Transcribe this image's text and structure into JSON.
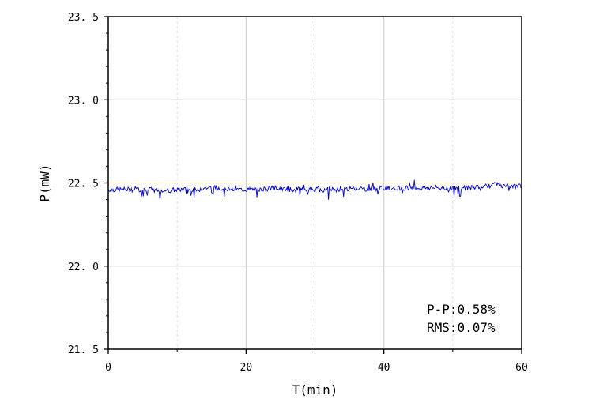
{
  "chart_data": {
    "type": "line",
    "xlabel": "T(min)",
    "ylabel": "P(mW)",
    "xlim": [
      0,
      60
    ],
    "ylim": [
      21.5,
      23.5
    ],
    "x_ticks": [
      "0",
      "20",
      "40",
      "60"
    ],
    "y_ticks": [
      "21.5",
      "22.0",
      "22.5",
      "23.0",
      "23.5"
    ],
    "grid": true,
    "reference_line": {
      "y": 22.5,
      "color": "#f0d9a0"
    },
    "series": [
      {
        "color": "#0000cc",
        "x": [
          0,
          2,
          4,
          6,
          8,
          10,
          12,
          14,
          16,
          18,
          20,
          22,
          24,
          26,
          28,
          30,
          32,
          34,
          36,
          38,
          40,
          42,
          44,
          46,
          48,
          50,
          52,
          54,
          56,
          58,
          60
        ],
        "y": [
          22.46,
          22.46,
          22.46,
          22.46,
          22.45,
          22.46,
          22.46,
          22.47,
          22.47,
          22.46,
          22.46,
          22.46,
          22.47,
          22.46,
          22.46,
          22.46,
          22.46,
          22.46,
          22.47,
          22.46,
          22.47,
          22.47,
          22.47,
          22.47,
          22.47,
          22.47,
          22.47,
          22.48,
          22.49,
          22.48,
          22.48
        ]
      }
    ],
    "annotations": [
      "P-P:0.58%",
      "RMS:0.07%"
    ]
  }
}
